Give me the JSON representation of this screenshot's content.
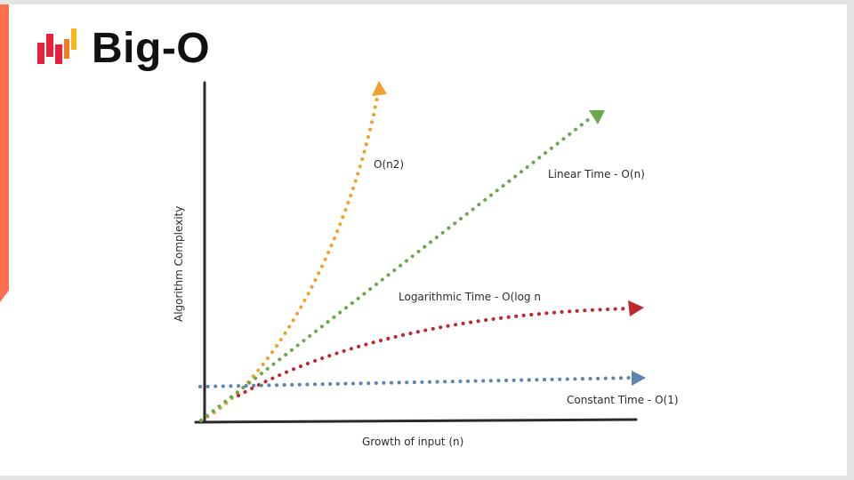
{
  "header": {
    "title": "Big-O",
    "logo_colors": [
      "#e8223d",
      "#f47b20",
      "#fbb51c"
    ]
  },
  "accent_color": "#ff6f4d",
  "chart_data": {
    "type": "line",
    "xlabel": "Growth of input (n)",
    "ylabel": "Algorithm Complexity",
    "series": [
      {
        "name": "O(n2)",
        "color": "#f0a030",
        "curve": "quadratic"
      },
      {
        "name": "Linear Time - O(n)",
        "color": "#6aa84f",
        "curve": "linear"
      },
      {
        "name": "Logarithmic Time - O(log n",
        "color": "#c0272d",
        "curve": "logarithmic"
      },
      {
        "name": "Constant Time - O(1)",
        "color": "#5b84b1",
        "curve": "constant"
      }
    ]
  }
}
